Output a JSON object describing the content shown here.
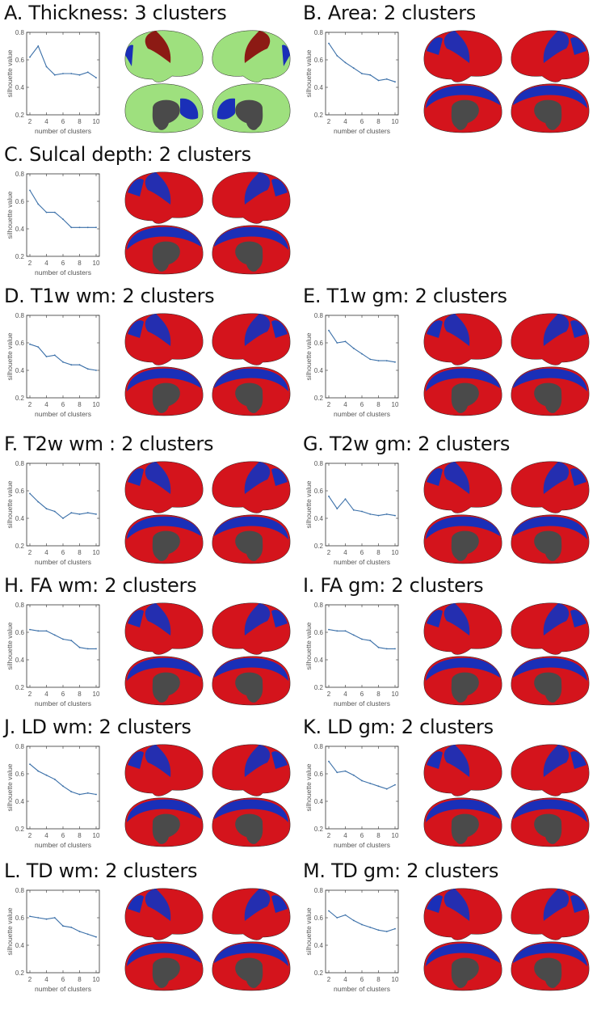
{
  "figure": {
    "axis": {
      "xlabel": "number of clusters",
      "ylabel": "silhouette value",
      "yticks": [
        "0.2",
        "0.4",
        "0.6",
        "0.8"
      ],
      "xticks": [
        "2",
        "4",
        "6",
        "8",
        "10"
      ]
    },
    "colors": {
      "line": "#3a6fa8",
      "red": "#d4141c",
      "blue": "#1a2fb8",
      "green": "#9ee07e",
      "darkred": "#8b0f0f",
      "gray": "#4a4a4a"
    }
  },
  "panels": [
    {
      "id": "A",
      "title": "A. Thickness: 3 clusters"
    },
    {
      "id": "B",
      "title": "B. Area: 2 clusters"
    },
    {
      "id": "C",
      "title": "C. Sulcal depth: 2 clusters"
    },
    {
      "id": "D",
      "title": "D. T1w wm: 2 clusters"
    },
    {
      "id": "E",
      "title": "E. T1w gm: 2 clusters"
    },
    {
      "id": "F",
      "title": "F. T2w wm : 2 clusters"
    },
    {
      "id": "G",
      "title": "G. T2w gm: 2 clusters"
    },
    {
      "id": "H",
      "title": "H. FA wm: 2 clusters"
    },
    {
      "id": "I",
      "title": "I. FA gm: 2 clusters"
    },
    {
      "id": "J",
      "title": "J. LD wm: 2 clusters"
    },
    {
      "id": "K",
      "title": "K. LD gm: 2 clusters"
    },
    {
      "id": "L",
      "title": "L. TD wm: 2 clusters"
    },
    {
      "id": "M",
      "title": "M. TD gm: 2 clusters"
    }
  ],
  "chart_data": [
    {
      "type": "line",
      "title": "A. Thickness: 3 clusters",
      "xlabel": "number of clusters",
      "ylabel": "silhouette value",
      "ylim": [
        0.2,
        0.8
      ],
      "x": [
        2,
        3,
        4,
        5,
        6,
        7,
        8,
        9,
        10
      ],
      "values": [
        0.62,
        0.7,
        0.55,
        0.49,
        0.5,
        0.5,
        0.49,
        0.51,
        0.47
      ]
    },
    {
      "type": "line",
      "title": "B. Area: 2 clusters",
      "xlabel": "number of clusters",
      "ylabel": "silhouette value",
      "ylim": [
        0.2,
        0.8
      ],
      "x": [
        2,
        3,
        4,
        5,
        6,
        7,
        8,
        9,
        10
      ],
      "values": [
        0.72,
        0.63,
        0.58,
        0.54,
        0.5,
        0.49,
        0.45,
        0.46,
        0.44
      ]
    },
    {
      "type": "line",
      "title": "C. Sulcal depth: 2 clusters",
      "xlabel": "number of clusters",
      "ylabel": "silhouette value",
      "ylim": [
        0.2,
        0.8
      ],
      "x": [
        2,
        3,
        4,
        5,
        6,
        7,
        8,
        9,
        10
      ],
      "values": [
        0.68,
        0.58,
        0.52,
        0.52,
        0.47,
        0.41,
        0.41,
        0.41,
        0.41
      ]
    },
    {
      "type": "line",
      "title": "D. T1w wm: 2 clusters",
      "xlabel": "number of clusters",
      "ylabel": "silhouette value",
      "ylim": [
        0.2,
        0.8
      ],
      "x": [
        2,
        3,
        4,
        5,
        6,
        7,
        8,
        9,
        10
      ],
      "values": [
        0.59,
        0.57,
        0.5,
        0.51,
        0.46,
        0.44,
        0.44,
        0.41,
        0.4
      ]
    },
    {
      "type": "line",
      "title": "E. T1w gm: 2 clusters",
      "xlabel": "number of clusters",
      "ylabel": "silhouette value",
      "ylim": [
        0.2,
        0.8
      ],
      "x": [
        2,
        3,
        4,
        5,
        6,
        7,
        8,
        9,
        10
      ],
      "values": [
        0.69,
        0.6,
        0.61,
        0.56,
        0.52,
        0.48,
        0.47,
        0.47,
        0.46
      ]
    },
    {
      "type": "line",
      "title": "F. T2w wm : 2 clusters",
      "xlabel": "number of clusters",
      "ylabel": "silhouette value",
      "ylim": [
        0.2,
        0.8
      ],
      "x": [
        2,
        3,
        4,
        5,
        6,
        7,
        8,
        9,
        10
      ],
      "values": [
        0.58,
        0.52,
        0.47,
        0.45,
        0.4,
        0.44,
        0.43,
        0.44,
        0.43
      ]
    },
    {
      "type": "line",
      "title": "G. T2w gm: 2 clusters",
      "xlabel": "number of clusters",
      "ylabel": "silhouette value",
      "ylim": [
        0.2,
        0.8
      ],
      "x": [
        2,
        3,
        4,
        5,
        6,
        7,
        8,
        9,
        10
      ],
      "values": [
        0.56,
        0.47,
        0.54,
        0.46,
        0.45,
        0.43,
        0.42,
        0.43,
        0.42
      ]
    },
    {
      "type": "line",
      "title": "H. FA wm: 2 clusters",
      "xlabel": "number of clusters",
      "ylabel": "silhouette value",
      "ylim": [
        0.2,
        0.8
      ],
      "x": [
        2,
        3,
        4,
        5,
        6,
        7,
        8,
        9,
        10
      ],
      "values": [
        0.62,
        0.61,
        0.61,
        0.58,
        0.55,
        0.54,
        0.49,
        0.48,
        0.48
      ]
    },
    {
      "type": "line",
      "title": "I. FA gm: 2 clusters",
      "xlabel": "number of clusters",
      "ylabel": "silhouette value",
      "ylim": [
        0.2,
        0.8
      ],
      "x": [
        2,
        3,
        4,
        5,
        6,
        7,
        8,
        9,
        10
      ],
      "values": [
        0.62,
        0.61,
        0.61,
        0.58,
        0.55,
        0.54,
        0.49,
        0.48,
        0.48
      ]
    },
    {
      "type": "line",
      "title": "J. LD wm: 2 clusters",
      "xlabel": "number of clusters",
      "ylabel": "silhouette value",
      "ylim": [
        0.2,
        0.8
      ],
      "x": [
        2,
        3,
        4,
        5,
        6,
        7,
        8,
        9,
        10
      ],
      "values": [
        0.67,
        0.62,
        0.59,
        0.56,
        0.51,
        0.47,
        0.45,
        0.46,
        0.45
      ]
    },
    {
      "type": "line",
      "title": "K. LD gm: 2 clusters",
      "xlabel": "number of clusters",
      "ylabel": "silhouette value",
      "ylim": [
        0.2,
        0.8
      ],
      "x": [
        2,
        3,
        4,
        5,
        6,
        7,
        8,
        9,
        10
      ],
      "values": [
        0.69,
        0.61,
        0.62,
        0.59,
        0.55,
        0.53,
        0.51,
        0.49,
        0.52
      ]
    },
    {
      "type": "line",
      "title": "L. TD wm: 2 clusters",
      "xlabel": "number of clusters",
      "ylabel": "silhouette value",
      "ylim": [
        0.2,
        0.8
      ],
      "x": [
        2,
        3,
        4,
        5,
        6,
        7,
        8,
        9,
        10
      ],
      "values": [
        0.61,
        0.6,
        0.59,
        0.6,
        0.54,
        0.53,
        0.5,
        0.48,
        0.46
      ]
    },
    {
      "type": "line",
      "title": "M. TD gm: 2 clusters",
      "xlabel": "number of clusters",
      "ylabel": "silhouette value",
      "ylim": [
        0.2,
        0.8
      ],
      "x": [
        2,
        3,
        4,
        5,
        6,
        7,
        8,
        9,
        10
      ],
      "values": [
        0.65,
        0.6,
        0.62,
        0.58,
        0.55,
        0.53,
        0.51,
        0.5,
        0.52
      ]
    }
  ]
}
